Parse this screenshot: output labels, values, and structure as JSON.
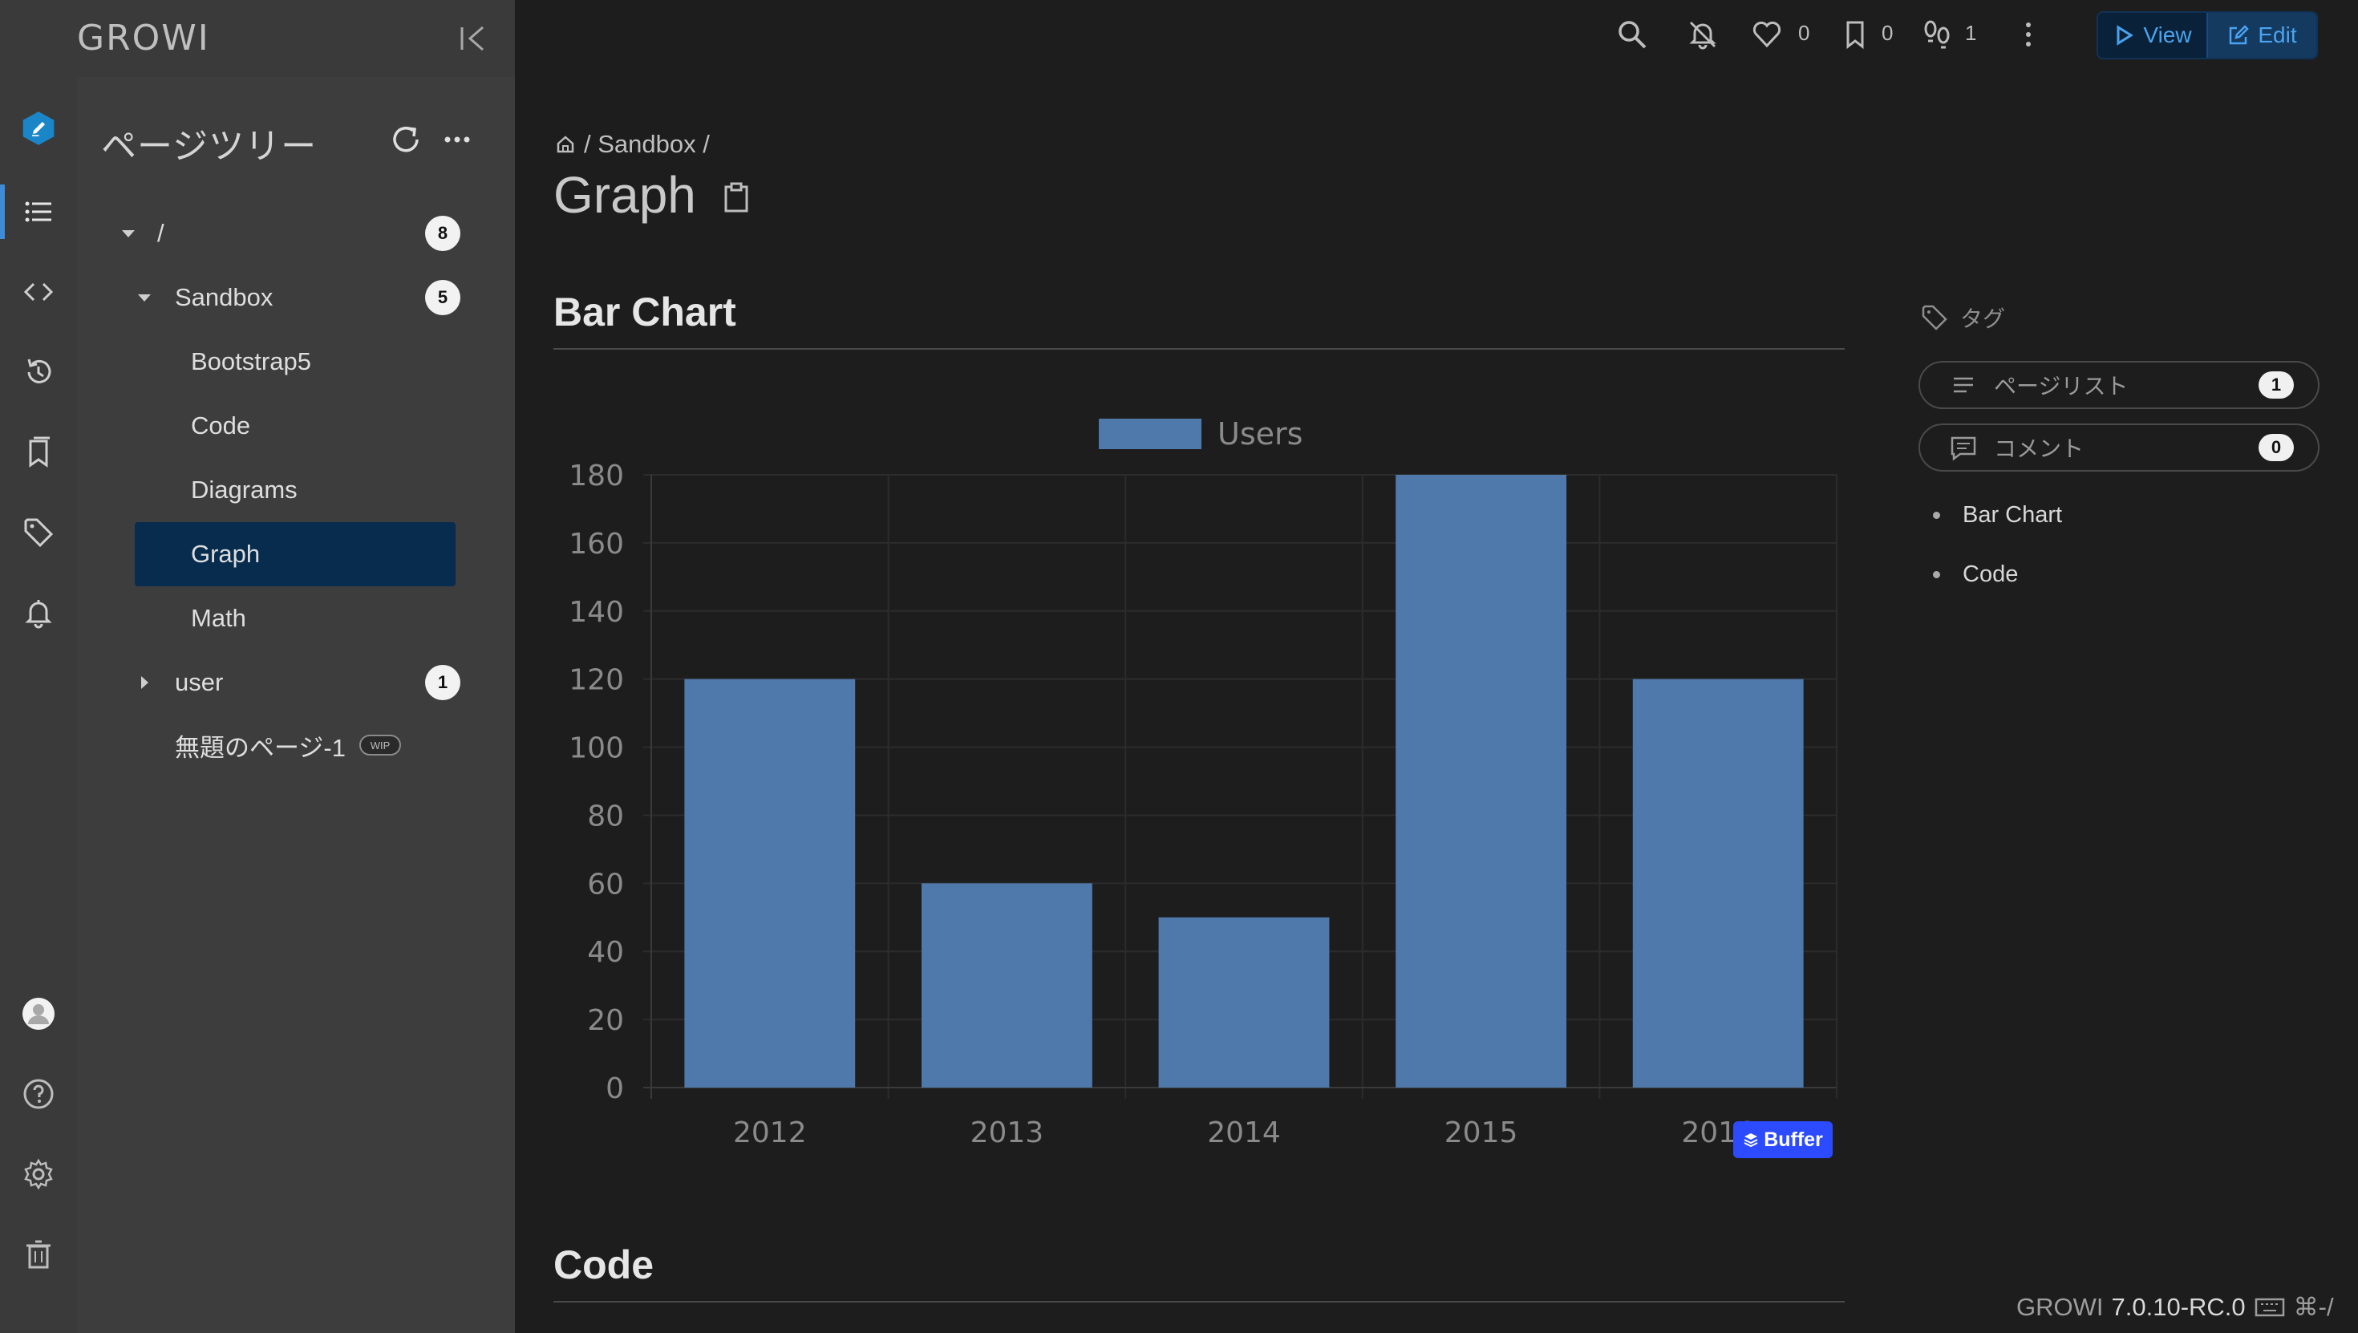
{
  "brand": {
    "name": "GROWI"
  },
  "tree": {
    "title": "ページツリー",
    "items": [
      {
        "label": "/",
        "count": "8"
      },
      {
        "label": "Sandbox",
        "count": "5"
      },
      {
        "label": "Bootstrap5"
      },
      {
        "label": "Code"
      },
      {
        "label": "Diagrams"
      },
      {
        "label": "Graph"
      },
      {
        "label": "Math"
      },
      {
        "label": "user",
        "count": "1"
      },
      {
        "label": "無題のページ-1",
        "badge": "WIP"
      }
    ]
  },
  "header": {
    "likes": "0",
    "bookmarks": "0",
    "seen_by": "1",
    "view_label": "View",
    "edit_label": "Edit"
  },
  "page": {
    "breadcrumb_path": "/ Sandbox /",
    "title": "Graph"
  },
  "sections": {
    "bar_chart_heading": "Bar Chart",
    "code_heading": "Code"
  },
  "buffer": {
    "label": "Buffer"
  },
  "sidebar": {
    "tags_label": "タグ",
    "page_list_label": "ページリスト",
    "page_list_count": "1",
    "comments_label": "コメント",
    "comments_count": "0",
    "toc": [
      "Bar Chart",
      "Code"
    ]
  },
  "footer": {
    "app_name": "GROWI",
    "version": "7.0.10-RC.0",
    "shortcut": "⌘-/"
  },
  "colors": {
    "bar_fill": "#4f79aa",
    "accent": "#3d8bd9",
    "selected_tree_item": "#072c4e"
  },
  "chart_data": {
    "type": "bar",
    "categories": [
      "2012",
      "2013",
      "2014",
      "2015",
      "2016"
    ],
    "series": [
      {
        "name": "Users",
        "values": [
          120,
          60,
          50,
          180,
          120
        ]
      }
    ],
    "ylim": [
      0,
      180
    ],
    "yticks": [
      0,
      20,
      40,
      60,
      80,
      100,
      120,
      140,
      160,
      180
    ],
    "legend": "top",
    "grid": true
  }
}
